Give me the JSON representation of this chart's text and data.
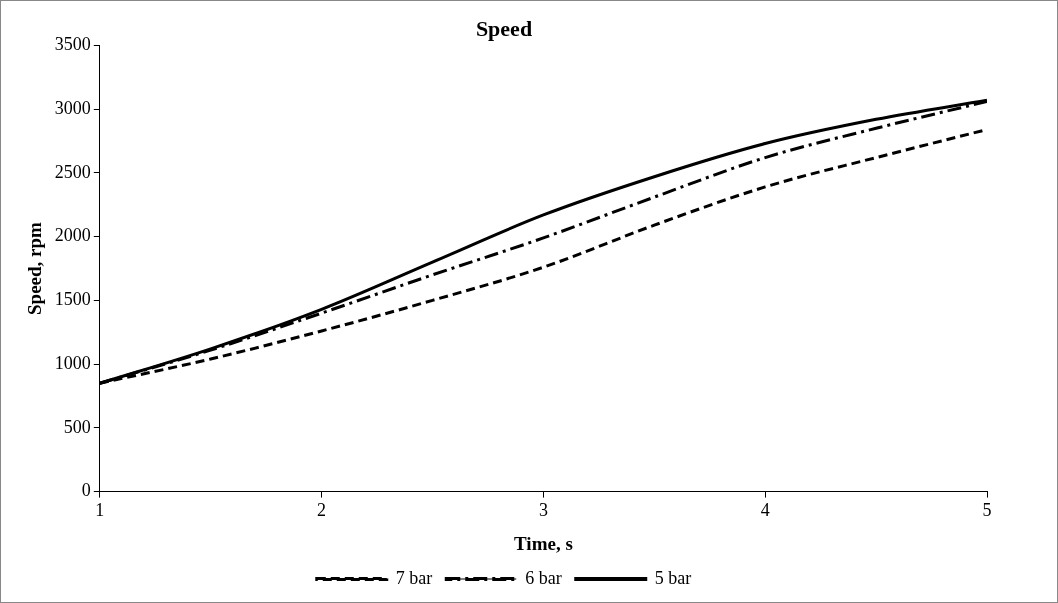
{
  "chart_data": {
    "type": "line",
    "title": "Speed",
    "xlabel": "Time, s",
    "ylabel": "Speed, rpm",
    "x": [
      1,
      1.5,
      2,
      2.5,
      3,
      3.5,
      4,
      4.5,
      5
    ],
    "series": [
      {
        "name": "7 bar",
        "color": "#000000",
        "line_style": "dashed",
        "values": [
          850,
          1040,
          1260,
          1500,
          1760,
          2090,
          2390,
          2620,
          2840
        ]
      },
      {
        "name": "6 bar",
        "color": "#000000",
        "line_style": "dashdot",
        "values": [
          850,
          1110,
          1400,
          1700,
          1990,
          2310,
          2620,
          2850,
          3060
        ]
      },
      {
        "name": "5 bar",
        "color": "#000000",
        "line_style": "solid",
        "values": [
          850,
          1120,
          1430,
          1800,
          2170,
          2470,
          2730,
          2920,
          3070
        ]
      }
    ],
    "xlim": [
      1,
      5
    ],
    "xticks": [
      1,
      2,
      3,
      4,
      5
    ],
    "ylim": [
      0,
      3500
    ],
    "yticks": [
      0,
      500,
      1000,
      1500,
      2000,
      2500,
      3000,
      3500
    ],
    "grid": false,
    "legend": "bottom",
    "marker": "none"
  }
}
